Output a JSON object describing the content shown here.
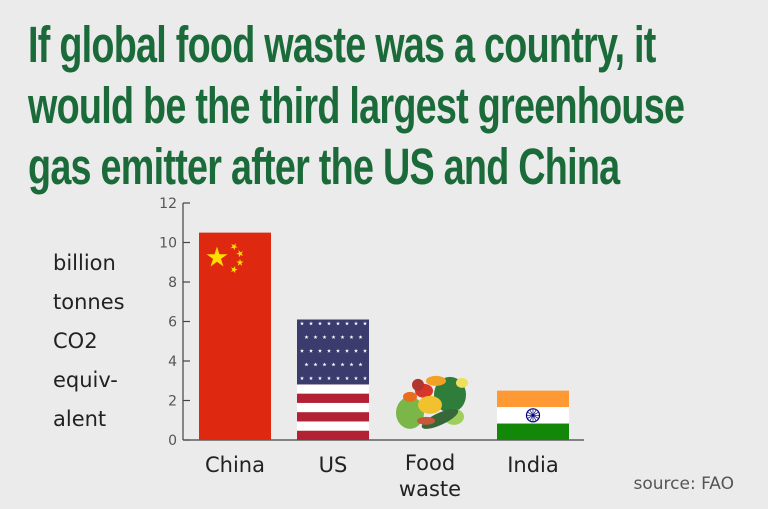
{
  "title_lines": [
    "If global food waste was a country, it",
    "would be the third largest greenhouse",
    "gas emitter after the US and China"
  ],
  "ylabel_lines": [
    "billion",
    "tonnes",
    "CO2",
    "equiv-",
    "alent"
  ],
  "source": "source: FAO",
  "chart_data": {
    "type": "bar",
    "title": "If global food waste was a country, it would be the third largest greenhouse gas emitter after the US and China",
    "ylabel": "billion tonnes CO2 equiv-alent",
    "xlabel": "",
    "categories": [
      "China",
      "US",
      "Food waste",
      "India"
    ],
    "category_lines": [
      [
        "China"
      ],
      [
        "US"
      ],
      [
        "Food",
        "waste"
      ],
      [
        "India"
      ]
    ],
    "values": [
      10.5,
      6.1,
      3.3,
      2.5
    ],
    "ylim": [
      0,
      12
    ],
    "yticks": [
      0,
      2,
      4,
      6,
      8,
      10,
      12
    ],
    "bar_styles": [
      "flag-china",
      "flag-us",
      "food-illustration",
      "flag-india"
    ],
    "colors": {
      "china_red": "#de2910",
      "china_yellow": "#ffde00",
      "us_red": "#b22234",
      "us_blue": "#3c3b6e",
      "india_saffron": "#ff9933",
      "india_green": "#138808",
      "chakra": "#000080",
      "title_green": "#1b6b3a"
    }
  }
}
